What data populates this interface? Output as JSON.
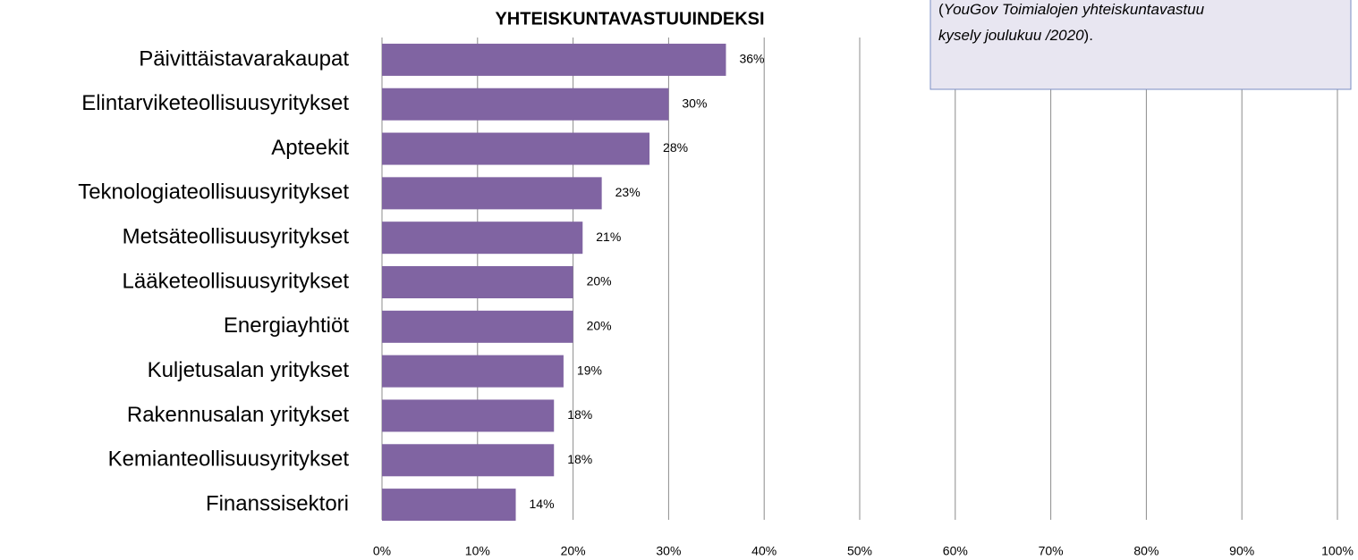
{
  "chart_data": {
    "type": "bar",
    "orientation": "horizontal",
    "title": "YHTEISKUNTAVASTUUINDEKSI",
    "note": [
      "(",
      "YouGov Toimialojen yhteiskuntavastuu",
      "kysely joulukuu /2020",
      ")."
    ],
    "categories": [
      "Päivittäistavarakaupat",
      "Elintarviketeollisuusyritykset",
      "Apteekit",
      "Teknologiateollisuusyritykset",
      "Metsäteollisuusyritykset",
      "Lääketeollisuusyritykset",
      "Energiayhtiöt",
      "Kuljetusalan yritykset",
      "Rakennusalan yritykset",
      "Kemianteollisuusyritykset",
      "Finanssisektori"
    ],
    "values": [
      36,
      30,
      28,
      23,
      21,
      20,
      20,
      19,
      18,
      18,
      14
    ],
    "value_labels": [
      "36%",
      "30%",
      "28%",
      "23%",
      "21%",
      "20%",
      "20%",
      "19%",
      "18%",
      "18%",
      "14%"
    ],
    "color": "#8064a2",
    "xlim": [
      0,
      100
    ],
    "xticks": [
      {
        "value": 0,
        "label": "0%"
      },
      {
        "value": 10,
        "label": "10%"
      },
      {
        "value": 20,
        "label": "20%"
      },
      {
        "value": 30,
        "label": "30%"
      },
      {
        "value": 40,
        "label": "40%"
      },
      {
        "value": 50,
        "label": "50%"
      },
      {
        "value": 60,
        "label": "60%"
      },
      {
        "value": 70,
        "label": "70%"
      },
      {
        "value": 80,
        "label": "80%"
      },
      {
        "value": 90,
        "label": "90%"
      },
      {
        "value": 100,
        "label": "100%"
      }
    ],
    "grid": true
  }
}
